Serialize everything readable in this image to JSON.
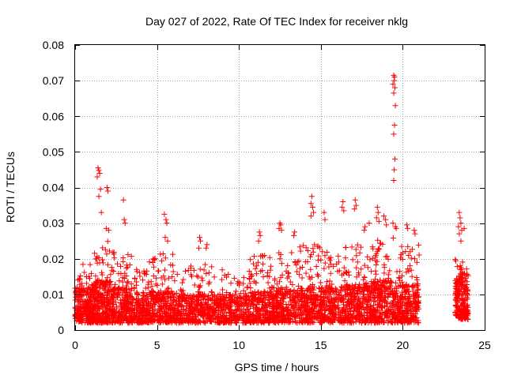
{
  "chart_data": {
    "type": "scatter",
    "title": "Day 027 of 2022, Rate Of TEC Index for receiver nklg",
    "xlabel": "GPS time / hours",
    "ylabel": "ROTI / TECUs",
    "xlim": [
      0,
      25
    ],
    "ylim": [
      0,
      0.08
    ],
    "xticks": [
      0,
      5,
      10,
      15,
      20,
      25
    ],
    "yticks": [
      0,
      0.01,
      0.02,
      0.03,
      0.04,
      0.05,
      0.06,
      0.07,
      0.08
    ],
    "xtick_labels": [
      "0",
      "5",
      "10",
      "15",
      "20",
      "25"
    ],
    "ytick_labels": [
      "0",
      "0.01",
      "0.02",
      "0.03",
      "0.04",
      "0.05",
      "0.06",
      "0.07",
      "0.08"
    ],
    "grid": true,
    "marker": "+",
    "color": "#ff0000",
    "series": [
      {
        "points": [
          [
            1.4,
            0.0455
          ],
          [
            1.45,
            0.0448
          ],
          [
            1.5,
            0.044
          ],
          [
            1.35,
            0.043
          ],
          [
            1.55,
            0.0395
          ],
          [
            1.45,
            0.0375
          ],
          [
            1.6,
            0.033
          ],
          [
            1.95,
            0.04
          ],
          [
            2.0,
            0.039
          ],
          [
            1.9,
            0.0285
          ],
          [
            2.05,
            0.028
          ],
          [
            2.95,
            0.0365
          ],
          [
            3.0,
            0.031
          ],
          [
            3.05,
            0.03
          ],
          [
            5.45,
            0.0325
          ],
          [
            5.55,
            0.031
          ],
          [
            5.6,
            0.03
          ],
          [
            5.5,
            0.026
          ],
          [
            5.65,
            0.025
          ],
          [
            7.6,
            0.026
          ],
          [
            7.65,
            0.025
          ],
          [
            7.55,
            0.023
          ],
          [
            8.05,
            0.024
          ],
          [
            8.0,
            0.023
          ],
          [
            11.25,
            0.0275
          ],
          [
            11.3,
            0.0265
          ],
          [
            11.2,
            0.025
          ],
          [
            12.5,
            0.03
          ],
          [
            12.55,
            0.0295
          ],
          [
            12.45,
            0.0285
          ],
          [
            12.6,
            0.028
          ],
          [
            13.4,
            0.0275
          ],
          [
            13.35,
            0.0265
          ],
          [
            14.45,
            0.0375
          ],
          [
            14.4,
            0.0355
          ],
          [
            14.5,
            0.0345
          ],
          [
            14.55,
            0.033
          ],
          [
            14.4,
            0.032
          ],
          [
            15.2,
            0.033
          ],
          [
            15.25,
            0.031
          ],
          [
            16.35,
            0.036
          ],
          [
            16.3,
            0.0345
          ],
          [
            16.4,
            0.0335
          ],
          [
            17.1,
            0.0365
          ],
          [
            17.15,
            0.035
          ],
          [
            17.05,
            0.034
          ],
          [
            17.7,
            0.029
          ],
          [
            17.65,
            0.028
          ],
          [
            17.95,
            0.03
          ],
          [
            18.45,
            0.0345
          ],
          [
            18.5,
            0.033
          ],
          [
            18.4,
            0.0315
          ],
          [
            18.55,
            0.0305
          ],
          [
            18.85,
            0.032
          ],
          [
            18.95,
            0.031
          ],
          [
            19.0,
            0.0295
          ],
          [
            19.45,
            0.0715
          ],
          [
            19.5,
            0.071
          ],
          [
            19.48,
            0.07
          ],
          [
            19.4,
            0.069
          ],
          [
            19.52,
            0.068
          ],
          [
            19.45,
            0.0665
          ],
          [
            19.55,
            0.063
          ],
          [
            19.5,
            0.0575
          ],
          [
            19.45,
            0.055
          ],
          [
            19.52,
            0.048
          ],
          [
            19.48,
            0.045
          ],
          [
            19.45,
            0.042
          ],
          [
            19.4,
            0.03
          ],
          [
            19.55,
            0.029
          ],
          [
            19.6,
            0.0285
          ],
          [
            20.25,
            0.0295
          ],
          [
            20.3,
            0.0285
          ],
          [
            20.7,
            0.028
          ],
          [
            20.75,
            0.027
          ],
          [
            23.45,
            0.033
          ],
          [
            23.5,
            0.0315
          ],
          [
            23.55,
            0.03
          ],
          [
            23.4,
            0.029
          ],
          [
            23.6,
            0.028
          ],
          [
            23.45,
            0.027
          ],
          [
            23.55,
            0.025
          ],
          [
            23.75,
            0.0285
          ]
        ],
        "dense_bands": [
          {
            "x": [
              0.0,
              1.0
            ],
            "y": [
              0.002,
              0.012
            ],
            "peak": 0.019,
            "n": 220
          },
          {
            "x": [
              1.0,
              2.2
            ],
            "y": [
              0.002,
              0.014
            ],
            "peak": 0.025,
            "n": 300
          },
          {
            "x": [
              2.2,
              3.5
            ],
            "y": [
              0.002,
              0.012
            ],
            "peak": 0.022,
            "n": 260
          },
          {
            "x": [
              3.5,
              4.5
            ],
            "y": [
              0.002,
              0.009
            ],
            "peak": 0.017,
            "n": 180
          },
          {
            "x": [
              4.5,
              6.0
            ],
            "y": [
              0.002,
              0.011
            ],
            "peak": 0.022,
            "n": 260
          },
          {
            "x": [
              6.0,
              7.5
            ],
            "y": [
              0.002,
              0.01
            ],
            "peak": 0.018,
            "n": 230
          },
          {
            "x": [
              7.5,
              9.0
            ],
            "y": [
              0.002,
              0.01
            ],
            "peak": 0.019,
            "n": 230
          },
          {
            "x": [
              9.0,
              10.5
            ],
            "y": [
              0.002,
              0.01
            ],
            "peak": 0.016,
            "n": 230
          },
          {
            "x": [
              10.5,
              12.0
            ],
            "y": [
              0.002,
              0.011
            ],
            "peak": 0.021,
            "n": 250
          },
          {
            "x": [
              12.0,
              13.5
            ],
            "y": [
              0.002,
              0.012
            ],
            "peak": 0.022,
            "n": 260
          },
          {
            "x": [
              13.5,
              15.0
            ],
            "y": [
              0.002,
              0.012
            ],
            "peak": 0.024,
            "n": 260
          },
          {
            "x": [
              15.0,
              16.5
            ],
            "y": [
              0.002,
              0.012
            ],
            "peak": 0.022,
            "n": 250
          },
          {
            "x": [
              16.5,
              18.0
            ],
            "y": [
              0.002,
              0.013
            ],
            "peak": 0.024,
            "n": 270
          },
          {
            "x": [
              18.0,
              19.5
            ],
            "y": [
              0.002,
              0.014
            ],
            "peak": 0.026,
            "n": 290
          },
          {
            "x": [
              19.5,
              21.0
            ],
            "y": [
              0.002,
              0.013
            ],
            "peak": 0.025,
            "n": 280
          },
          {
            "x": [
              23.2,
              24.0
            ],
            "y": [
              0.003,
              0.016
            ],
            "peak": 0.021,
            "n": 230
          }
        ]
      }
    ]
  }
}
